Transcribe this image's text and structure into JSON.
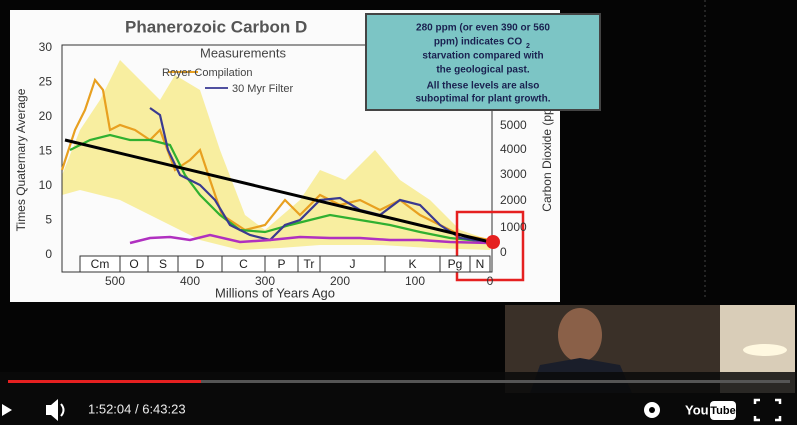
{
  "slide": {
    "title": "Phanerozoic Carbon D",
    "legend": {
      "heading": "Measurements",
      "compilation": "Royer Compilation",
      "filter": "30 Myr Filter"
    },
    "y_label": "Times Quaternary Average",
    "y2_label": "Carbon Dioxide (pp",
    "x_label": "Millions of Years Ago",
    "y_ticks": [
      "0",
      "5",
      "10",
      "15",
      "20",
      "25",
      "30"
    ],
    "y2_ticks": [
      "0",
      "1000",
      "2000",
      "3000",
      "4000",
      "5000"
    ],
    "x_ticks": [
      "500",
      "400",
      "300",
      "200",
      "100",
      "0"
    ],
    "periods": [
      "Cm",
      "O",
      "S",
      "D",
      "C",
      "P",
      "Tr",
      "J",
      "K",
      "Pg",
      "N"
    ],
    "note": {
      "line1": "280 ppm (or even 390 or 560",
      "line2a": "ppm) indicates CO",
      "line2sub": "2",
      "line3": "starvation compared with",
      "line4": "the geological past.",
      "line5": "All these levels are also",
      "line6": "suboptimal for plant growth."
    }
  },
  "player": {
    "time": "1:52:04 / 6:43:23",
    "logo_you": "You",
    "logo_tube": "Tube"
  }
}
